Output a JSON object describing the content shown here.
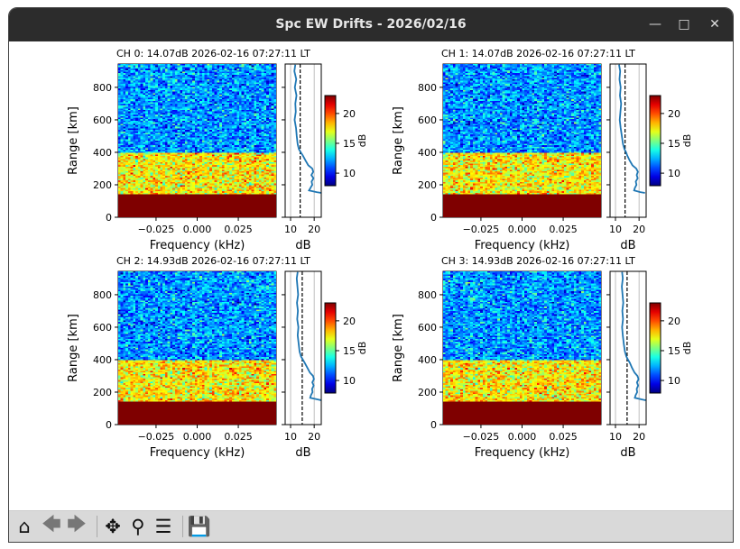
{
  "window": {
    "title": "Spc EW Drifts - 2026/02/16",
    "minimize_icon": "minimize-icon",
    "maximize_icon": "maximize-icon",
    "close_icon": "close-icon"
  },
  "toolbar": {
    "icons": [
      "home-icon",
      "back-arrow-icon",
      "forward-arrow-icon",
      "pan-icon",
      "zoom-icon",
      "configure-subplots-icon",
      "save-icon"
    ]
  },
  "chart_data": [
    {
      "type": "heatmap",
      "title": "CH 0: 14.07dB 2026-02-16 07:27:11 LT",
      "xlabel": "Frequency (kHz)",
      "ylabel": "Range [km]",
      "xticks": [
        "−0.025",
        "0.000",
        "0.025"
      ],
      "yticks": [
        "0",
        "200",
        "400",
        "600",
        "800"
      ],
      "xlim": [
        -0.048,
        0.048
      ],
      "ylim": [
        0,
        944
      ],
      "colorbar": {
        "label": "dB",
        "ticks": [
          "10",
          "15",
          "20"
        ],
        "range": [
          7.9,
          23
        ]
      },
      "profile": {
        "xlabel": "dB",
        "xticks": [
          "10",
          "20"
        ],
        "xlim": [
          7.7,
          23
        ],
        "noise_level": 14.07,
        "range_km": [
          940,
          900,
          850,
          800,
          750,
          700,
          650,
          600,
          550,
          500,
          450,
          420,
          400,
          380,
          350,
          320,
          300,
          280,
          260,
          240,
          220,
          200,
          180,
          165,
          155,
          150
        ],
        "db": [
          12,
          11.6,
          12.4,
          11.8,
          12.5,
          12,
          12.2,
          11.7,
          12.3,
          12.6,
          13,
          13.5,
          14.3,
          15.2,
          16.3,
          17.5,
          19.2,
          19.6,
          18.8,
          19.7,
          18.9,
          19.2,
          18.4,
          17.8,
          21,
          23
        ]
      }
    },
    {
      "type": "heatmap",
      "title": "CH 1: 14.07dB 2026-02-16 07:27:11 LT",
      "xlabel": "Frequency (kHz)",
      "ylabel": "Range [km]",
      "xticks": [
        "−0.025",
        "0.000",
        "0.025"
      ],
      "yticks": [
        "0",
        "200",
        "400",
        "600",
        "800"
      ],
      "xlim": [
        -0.048,
        0.048
      ],
      "ylim": [
        0,
        944
      ],
      "colorbar": {
        "label": "dB",
        "ticks": [
          "10",
          "15",
          "20"
        ],
        "range": [
          7.9,
          23
        ]
      },
      "profile": {
        "xlabel": "dB",
        "xticks": [
          "10",
          "20"
        ],
        "xlim": [
          7.7,
          23
        ],
        "noise_level": 14.07,
        "range_km": [
          940,
          900,
          850,
          800,
          750,
          700,
          650,
          600,
          550,
          500,
          450,
          420,
          400,
          380,
          350,
          320,
          300,
          280,
          260,
          240,
          220,
          200,
          180,
          165,
          155,
          150
        ],
        "db": [
          11.5,
          12,
          11.7,
          12.2,
          11.9,
          12.4,
          12.1,
          11.8,
          12.2,
          12.7,
          13.2,
          13.8,
          14.5,
          15,
          16,
          17.2,
          18.8,
          19.5,
          19,
          19.4,
          18.6,
          18.9,
          18.2,
          17.9,
          20.5,
          22.5
        ]
      }
    },
    {
      "type": "heatmap",
      "title": "CH 2: 14.93dB 2026-02-16 07:27:11 LT",
      "xlabel": "Frequency (kHz)",
      "ylabel": "Range [km]",
      "xticks": [
        "−0.025",
        "0.000",
        "0.025"
      ],
      "yticks": [
        "0",
        "200",
        "400",
        "600",
        "800"
      ],
      "xlim": [
        -0.048,
        0.048
      ],
      "ylim": [
        0,
        944
      ],
      "colorbar": {
        "label": "dB",
        "ticks": [
          "10",
          "15",
          "20"
        ],
        "range": [
          7.9,
          23
        ]
      },
      "profile": {
        "xlabel": "dB",
        "xticks": [
          "10",
          "20"
        ],
        "xlim": [
          7.7,
          23
        ],
        "noise_level": 14.93,
        "range_km": [
          940,
          900,
          850,
          800,
          750,
          700,
          650,
          600,
          550,
          500,
          450,
          420,
          400,
          380,
          350,
          320,
          300,
          280,
          260,
          240,
          220,
          200,
          180,
          165,
          155,
          150
        ],
        "db": [
          13,
          12.6,
          12.9,
          13.2,
          12.7,
          13.1,
          12.8,
          13.3,
          13,
          13.4,
          13.8,
          14.4,
          15.2,
          16,
          17.1,
          18.2,
          19.5,
          19.9,
          19.2,
          19.8,
          19.1,
          19.3,
          18.6,
          18.3,
          21.5,
          23
        ]
      }
    },
    {
      "type": "heatmap",
      "title": "CH 3: 14.93dB 2026-02-16 07:27:11 LT",
      "xlabel": "Frequency (kHz)",
      "ylabel": "Range [km]",
      "xticks": [
        "−0.025",
        "0.000",
        "0.025"
      ],
      "yticks": [
        "0",
        "200",
        "400",
        "600",
        "800"
      ],
      "xlim": [
        -0.048,
        0.048
      ],
      "ylim": [
        0,
        944
      ],
      "colorbar": {
        "label": "dB",
        "ticks": [
          "10",
          "15",
          "20"
        ],
        "range": [
          7.9,
          23
        ]
      },
      "profile": {
        "xlabel": "dB",
        "xticks": [
          "10",
          "20"
        ],
        "xlim": [
          7.7,
          23
        ],
        "noise_level": 14.93,
        "range_km": [
          940,
          900,
          850,
          800,
          750,
          700,
          650,
          600,
          550,
          500,
          450,
          420,
          400,
          380,
          350,
          320,
          300,
          280,
          260,
          240,
          220,
          200,
          180,
          165,
          155,
          150
        ],
        "db": [
          12.8,
          13.1,
          12.7,
          13,
          13.3,
          12.9,
          13.2,
          12.8,
          13.1,
          13.5,
          14,
          14.6,
          15.3,
          16.1,
          17,
          18.1,
          19.3,
          19.8,
          19.1,
          19.6,
          19,
          19.2,
          18.5,
          18.2,
          21.2,
          22.8
        ]
      }
    }
  ]
}
